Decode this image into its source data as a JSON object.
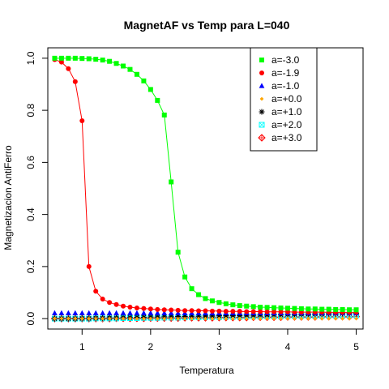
{
  "chart_data": {
    "type": "scatter",
    "title": "MagnetAF vs Temp para L=040",
    "xlabel": "Temperatura",
    "ylabel": "Magnetizacion AntiFerro",
    "xlim": [
      0.5,
      5.1
    ],
    "ylim": [
      -0.04,
      1.04
    ],
    "xticks": [
      "1",
      "2",
      "3",
      "4",
      "5"
    ],
    "yticks": [
      "0.0",
      "0.2",
      "0.4",
      "0.6",
      "0.8",
      "1.0"
    ],
    "grid": false,
    "legend_position": "top-right",
    "x": [
      0.6,
      0.7,
      0.8,
      0.9,
      1.0,
      1.1,
      1.2,
      1.3,
      1.4,
      1.5,
      1.6,
      1.7,
      1.8,
      1.9,
      2.0,
      2.1,
      2.2,
      2.3,
      2.4,
      2.5,
      2.6,
      2.7,
      2.8,
      2.9,
      3.0,
      3.1,
      3.2,
      3.3,
      3.4,
      3.5,
      3.6,
      3.7,
      3.8,
      3.9,
      4.0,
      4.1,
      4.2,
      4.3,
      4.4,
      4.5,
      4.6,
      4.7,
      4.8,
      4.9,
      5.0
    ],
    "series": [
      {
        "name": "a=-3.0",
        "color": "#00ff00",
        "marker": "square",
        "line": true,
        "values": [
          1.0,
          1.0,
          1.0,
          1.0,
          0.999,
          0.998,
          0.996,
          0.993,
          0.988,
          0.98,
          0.97,
          0.957,
          0.938,
          0.913,
          0.88,
          0.838,
          0.782,
          0.525,
          0.255,
          0.16,
          0.115,
          0.092,
          0.077,
          0.068,
          0.062,
          0.057,
          0.053,
          0.05,
          0.048,
          0.046,
          0.044,
          0.043,
          0.042,
          0.041,
          0.04,
          0.039,
          0.038,
          0.037,
          0.037,
          0.036,
          0.036,
          0.035,
          0.035,
          0.034,
          0.034
        ]
      },
      {
        "name": "a=-1.9",
        "color": "#ff0000",
        "marker": "circle",
        "line": true,
        "values": [
          0.995,
          0.985,
          0.96,
          0.91,
          0.76,
          0.2,
          0.105,
          0.075,
          0.062,
          0.054,
          0.048,
          0.044,
          0.041,
          0.039,
          0.037,
          0.035,
          0.034,
          0.033,
          0.032,
          0.031,
          0.031,
          0.03,
          0.03,
          0.029,
          0.029,
          0.028,
          0.028,
          0.028,
          0.027,
          0.027,
          0.027,
          0.026,
          0.026,
          0.026,
          0.026,
          0.025,
          0.025,
          0.025,
          0.025,
          0.025,
          0.024,
          0.024,
          0.024,
          0.024,
          0.024
        ]
      },
      {
        "name": "a=-1.0",
        "color": "#0000ff",
        "marker": "triangle",
        "line": false,
        "values": [
          0.021,
          0.021,
          0.021,
          0.021,
          0.021,
          0.021,
          0.021,
          0.021,
          0.021,
          0.021,
          0.021,
          0.021,
          0.021,
          0.021,
          0.021,
          0.021,
          0.021,
          0.021,
          0.021,
          0.021,
          0.021,
          0.021,
          0.021,
          0.021,
          0.021,
          0.021,
          0.021,
          0.021,
          0.021,
          0.021,
          0.021,
          0.021,
          0.021,
          0.021,
          0.021,
          0.021,
          0.021,
          0.021,
          0.021,
          0.021,
          0.021,
          0.021,
          0.021,
          0.021,
          0.021
        ]
      },
      {
        "name": "a=+0.0",
        "color": "#ffa500",
        "marker": "diamond-small",
        "line": false,
        "values": [
          0.0,
          0.0,
          0.0,
          0.0,
          0.0,
          0.0,
          0.0,
          0.0,
          0.0,
          0.0,
          0.0,
          0.0,
          0.0,
          0.0,
          0.0,
          0.0,
          0.0,
          0.0,
          0.0,
          0.0,
          0.0,
          0.0,
          0.0,
          0.0,
          0.0,
          0.0,
          0.0,
          0.0,
          0.0,
          0.0,
          0.0,
          0.0,
          0.0,
          0.0,
          0.0,
          0.0,
          0.0,
          0.0,
          0.0,
          0.0,
          0.0,
          0.0,
          0.0,
          0.0,
          0.0
        ]
      },
      {
        "name": "a=+1.0",
        "color": "#000000",
        "marker": "asterisk",
        "line": false,
        "values": [
          0.0,
          0.0,
          0.0,
          0.0,
          0.001,
          0.001,
          0.002,
          0.002,
          0.003,
          0.003,
          0.004,
          0.004,
          0.005,
          0.005,
          0.006,
          0.006,
          0.007,
          0.007,
          0.008,
          0.008,
          0.009,
          0.009,
          0.01,
          0.01,
          0.011,
          0.011,
          0.012,
          0.012,
          0.013,
          0.013,
          0.014,
          0.014,
          0.015,
          0.015,
          0.016,
          0.016,
          0.017,
          0.017,
          0.018,
          0.018,
          0.019,
          0.019,
          0.02,
          0.02,
          0.02
        ]
      },
      {
        "name": "a=+2.0",
        "color": "#00ffff",
        "marker": "square-open",
        "line": false,
        "values": [
          0.0,
          0.0,
          0.0,
          0.0,
          0.0,
          0.0,
          0.001,
          0.001,
          0.001,
          0.001,
          0.002,
          0.002,
          0.002,
          0.003,
          0.003,
          0.003,
          0.004,
          0.004,
          0.004,
          0.005,
          0.005,
          0.005,
          0.006,
          0.006,
          0.006,
          0.007,
          0.007,
          0.007,
          0.008,
          0.008,
          0.008,
          0.009,
          0.009,
          0.009,
          0.01,
          0.01,
          0.01,
          0.011,
          0.011,
          0.011,
          0.012,
          0.012,
          0.012,
          0.013,
          0.013
        ]
      },
      {
        "name": "a=+3.0",
        "color": "#ff0000",
        "marker": "circle-plus",
        "line": false,
        "values": [
          0.0,
          0.0,
          0.0,
          0.0,
          0.0,
          0.0,
          0.0,
          0.0,
          0.0,
          0.001,
          0.001,
          0.001,
          0.001,
          0.001,
          0.002,
          0.002,
          0.002,
          0.002,
          0.002,
          0.003,
          0.003,
          0.003,
          0.003,
          0.003,
          0.004,
          0.004,
          0.004,
          0.004,
          0.004,
          0.005,
          0.005,
          0.005,
          0.005,
          0.005,
          0.006,
          0.006,
          0.006,
          0.006,
          0.006,
          0.007,
          0.007,
          0.007,
          0.007,
          0.007,
          0.008
        ]
      }
    ]
  }
}
